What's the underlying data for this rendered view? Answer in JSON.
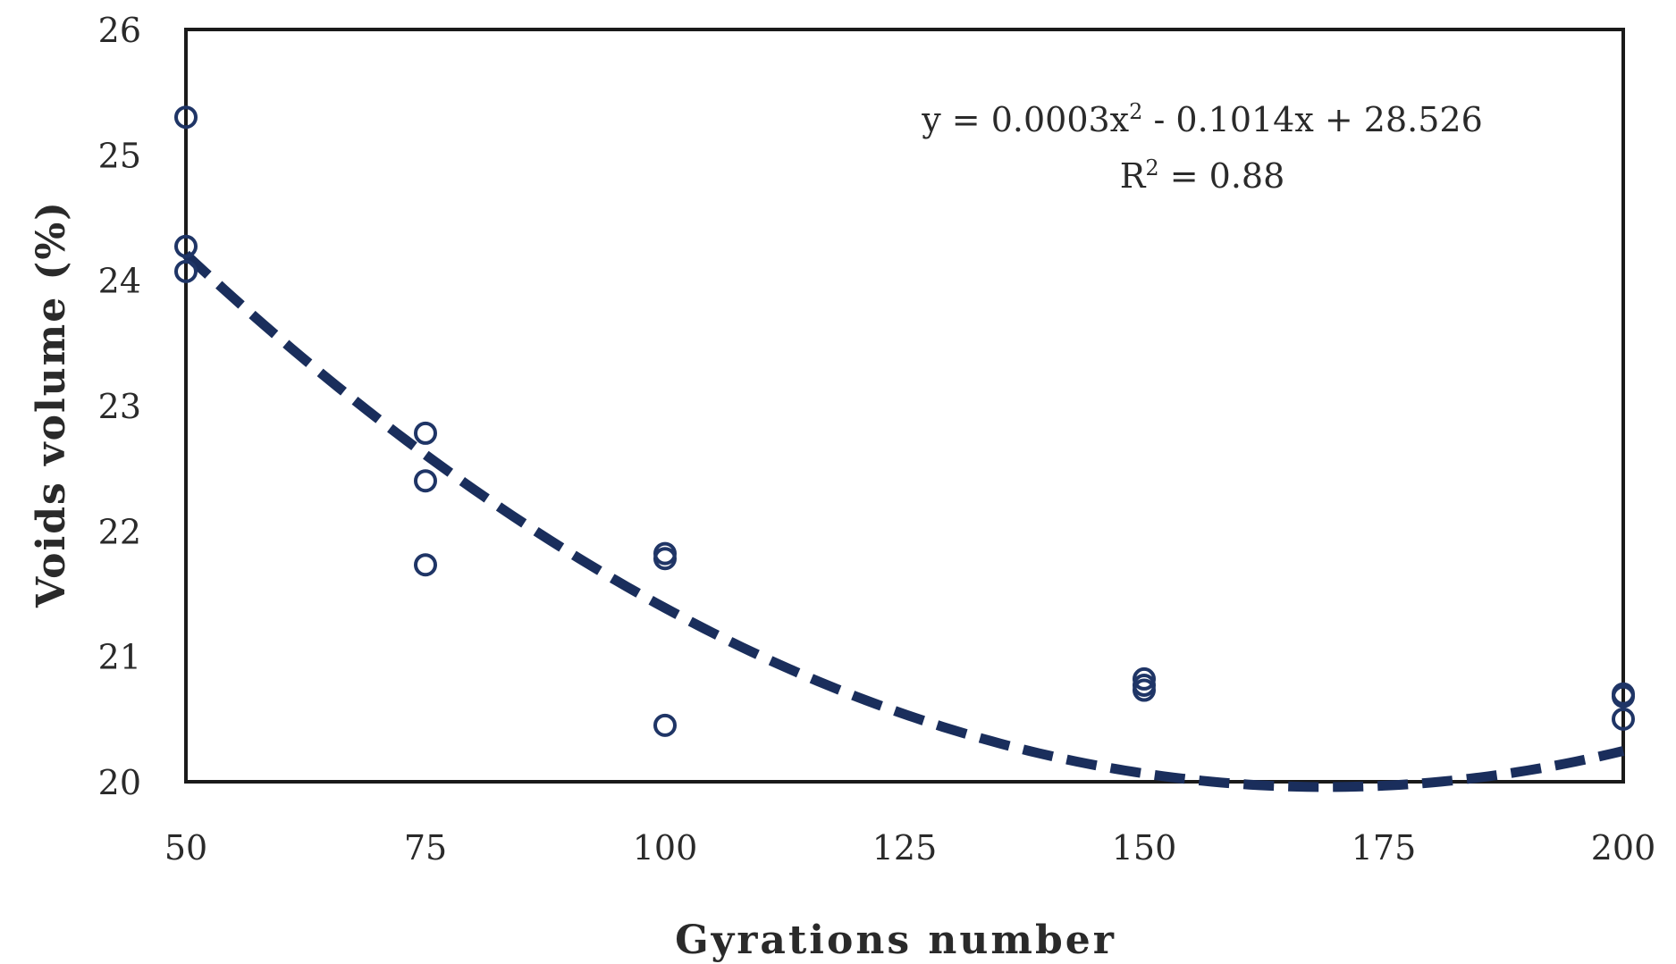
{
  "chart_data": {
    "type": "scatter",
    "title": "",
    "xlabel": "Gyrations number",
    "ylabel": "Voids volume (%)",
    "xlim": [
      50,
      200
    ],
    "ylim": [
      20,
      26
    ],
    "x_ticks": [
      50,
      75,
      100,
      125,
      150,
      175,
      200
    ],
    "y_ticks": [
      20,
      21,
      22,
      23,
      24,
      25,
      26
    ],
    "grid": false,
    "legend": "none",
    "series": [
      {
        "values": [
          {
            "x": 50,
            "y": 25.3
          },
          {
            "x": 50,
            "y": 24.27
          },
          {
            "x": 50,
            "y": 24.07
          },
          {
            "x": 75,
            "y": 22.78
          },
          {
            "x": 75,
            "y": 22.4
          },
          {
            "x": 75,
            "y": 21.73
          },
          {
            "x": 100,
            "y": 21.82
          },
          {
            "x": 100,
            "y": 21.78
          },
          {
            "x": 100,
            "y": 20.45
          },
          {
            "x": 150,
            "y": 20.82
          },
          {
            "x": 150,
            "y": 20.77
          },
          {
            "x": 150,
            "y": 20.73
          },
          {
            "x": 200,
            "y": 20.7
          },
          {
            "x": 200,
            "y": 20.68
          },
          {
            "x": 200,
            "y": 20.5
          }
        ],
        "marker": "open-circle",
        "color": "#1f3566"
      }
    ],
    "trendline": {
      "type": "polynomial",
      "order": 2,
      "coefficients": {
        "a": 0.0003,
        "b": -0.1014,
        "c": 28.526
      },
      "style": "dashed",
      "color": "#1a2e5c"
    },
    "annotations": {
      "equation_prefix": "y = 0.0003x",
      "equation_exp": "2",
      "equation_suffix": " - 0.1014x + 28.526",
      "r2_prefix": "R",
      "r2_exp": "2",
      "r2_suffix": " = 0.88"
    }
  }
}
